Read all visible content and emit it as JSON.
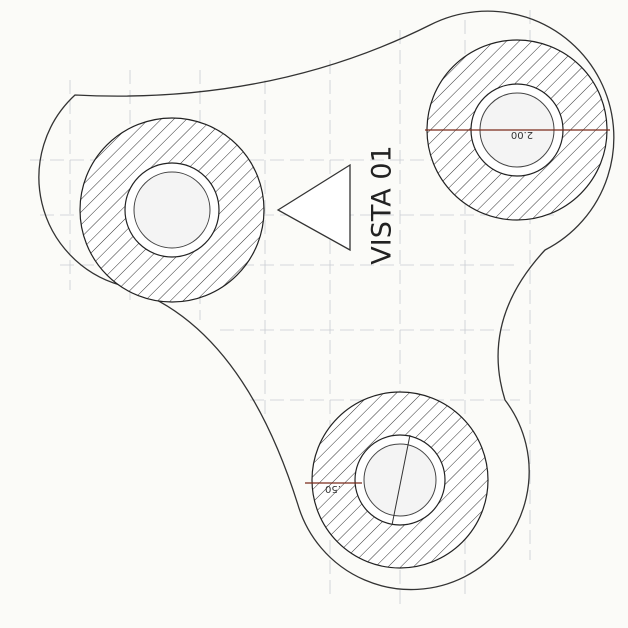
{
  "title": "VISTA 01",
  "dimensions": [
    {
      "label": "2.00"
    },
    {
      "label": ".50"
    }
  ]
}
